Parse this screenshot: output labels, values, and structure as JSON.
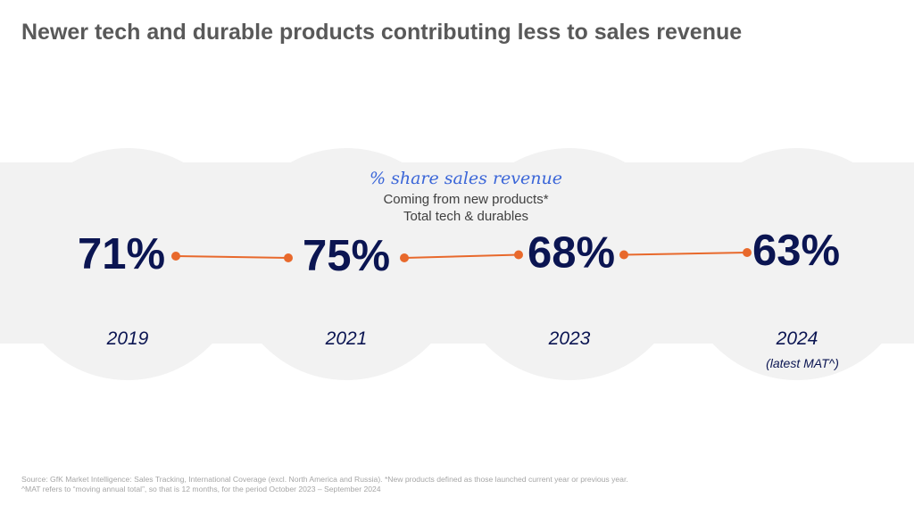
{
  "title": "Newer tech and durable products contributing less to sales revenue",
  "colors": {
    "title": "#595959",
    "band": "#f2f2f2",
    "value": "#0b1552",
    "year": "#0b1552",
    "accent_text": "#3b66d8",
    "subtitle": "#404040",
    "connector": "#e8692c",
    "footer": "#a6a6a6"
  },
  "chart_data": {
    "type": "line",
    "title": "% share sales revenue",
    "subtitle": [
      "Coming from new products*",
      "Total tech & durables"
    ],
    "unit": "%",
    "categories": [
      "2019",
      "2021",
      "2023",
      "2024"
    ],
    "category_notes": [
      "",
      "",
      "",
      "(latest MAT^)"
    ],
    "values": [
      71,
      75,
      68,
      63
    ],
    "labels": [
      "71%",
      "75%",
      "68%",
      "63%"
    ],
    "connectors": [
      [
        "2019",
        "2021"
      ],
      [
        "2021",
        "2023"
      ],
      [
        "2023",
        "2024"
      ]
    ]
  },
  "footer": {
    "source": "Source: GfK Market Intelligence: Sales Tracking, International Coverage (excl. North America and Russia). *New products defined as those launched current year or previous year.",
    "note": "^MAT refers to “moving annual total”, so that is 12 months, for the period October 2023 – September 2024"
  }
}
